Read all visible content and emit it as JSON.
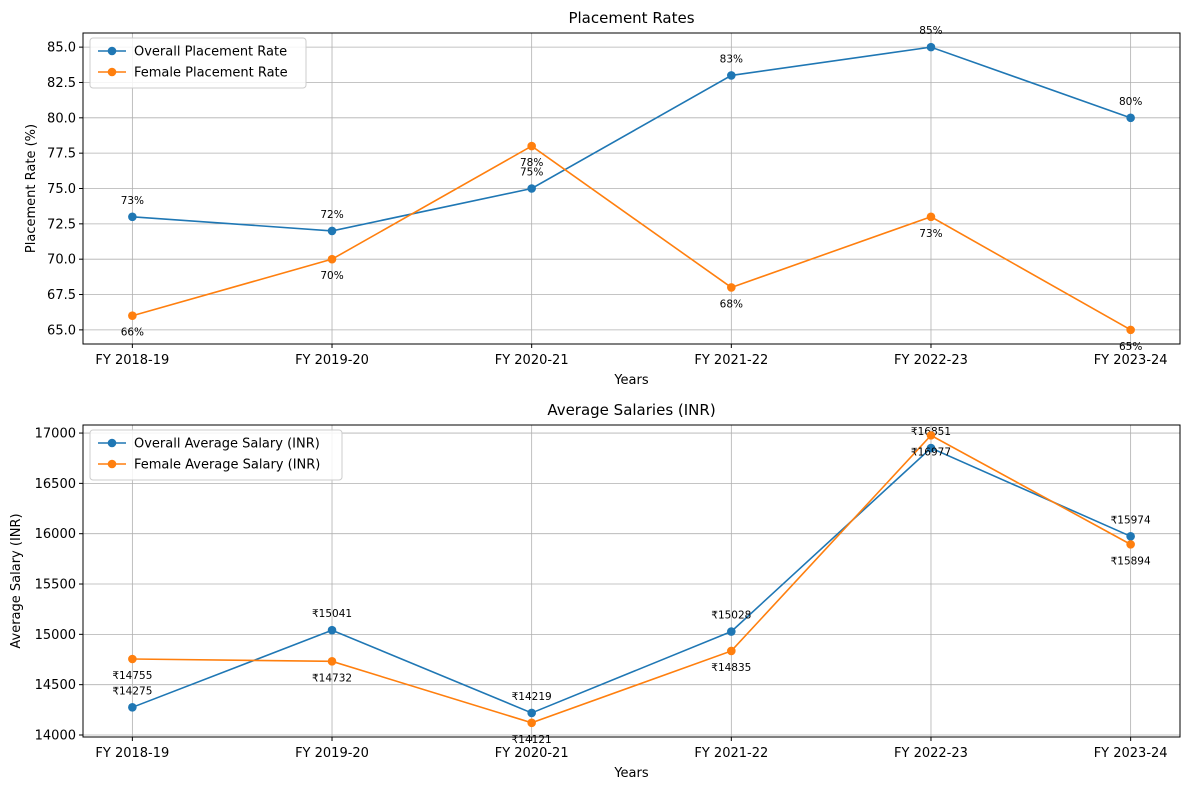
{
  "chart_data": [
    {
      "type": "line",
      "title": "Placement Rates",
      "xlabel": "Years",
      "ylabel": "Placement Rate (%)",
      "categories": [
        "FY 2018-19",
        "FY 2019-20",
        "FY 2020-21",
        "FY 2021-22",
        "FY 2022-23",
        "FY 2023-24"
      ],
      "ylim": [
        64.0,
        86.0
      ],
      "yticks": [
        65.0,
        67.5,
        70.0,
        72.5,
        75.0,
        77.5,
        80.0,
        82.5,
        85.0
      ],
      "ytick_labels": [
        "65.0",
        "67.5",
        "70.0",
        "72.5",
        "75.0",
        "77.5",
        "80.0",
        "82.5",
        "85.0"
      ],
      "grid": true,
      "legend_position": "top-left",
      "series": [
        {
          "name": "Overall Placement Rate",
          "color": "#1f77b4",
          "values": [
            73,
            72,
            75,
            83,
            85,
            80
          ],
          "labels": [
            "73%",
            "72%",
            "75%",
            "83%",
            "85%",
            "80%"
          ],
          "label_position": "above"
        },
        {
          "name": "Female Placement Rate",
          "color": "#ff7f0e",
          "values": [
            66,
            70,
            78,
            68,
            73,
            65
          ],
          "labels": [
            "66%",
            "70%",
            "78%",
            "68%",
            "73%",
            "65%"
          ],
          "label_position": "below"
        }
      ]
    },
    {
      "type": "line",
      "title": "Average Salaries (INR)",
      "xlabel": "Years",
      "ylabel": "Average Salary (INR)",
      "categories": [
        "FY 2018-19",
        "FY 2019-20",
        "FY 2020-21",
        "FY 2021-22",
        "FY 2022-23",
        "FY 2023-24"
      ],
      "ylim": [
        13980,
        17080
      ],
      "yticks": [
        14000,
        14500,
        15000,
        15500,
        16000,
        16500,
        17000
      ],
      "ytick_labels": [
        "14000",
        "14500",
        "15000",
        "15500",
        "16000",
        "16500",
        "17000"
      ],
      "grid": true,
      "legend_position": "top-left",
      "series": [
        {
          "name": "Overall Average Salary (INR)",
          "color": "#1f77b4",
          "values": [
            14275,
            15041,
            14219,
            15028,
            16851,
            15974
          ],
          "labels": [
            "₹14275",
            "₹15041",
            "₹14219",
            "₹15028",
            "₹16851",
            "₹15974"
          ],
          "label_position": "above"
        },
        {
          "name": "Female Average Salary (INR)",
          "color": "#ff7f0e",
          "values": [
            14755,
            14732,
            14121,
            14835,
            16977,
            15894
          ],
          "labels": [
            "₹14755",
            "₹14732",
            "₹14121",
            "₹14835",
            "₹16977",
            "₹15894"
          ],
          "label_position": "below"
        }
      ]
    }
  ]
}
